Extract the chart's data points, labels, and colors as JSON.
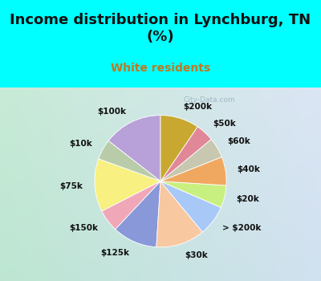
{
  "title": "Income distribution in Lynchburg, TN\n(%)",
  "subtitle": "White residents",
  "title_color": "#111111",
  "subtitle_color": "#c07820",
  "bg_top": "#00ffff",
  "bg_chart_left": "#b8e8d0",
  "bg_chart_right": "#e8f8ff",
  "watermark": "City-Data.com",
  "labels": [
    "$100k",
    "$10k",
    "$75k",
    "$150k",
    "$125k",
    "$30k",
    "> $200k",
    "$20k",
    "$40k",
    "$60k",
    "$50k",
    "$200k"
  ],
  "values": [
    14.5,
    5.0,
    13.0,
    5.5,
    11.0,
    12.0,
    7.5,
    5.5,
    7.0,
    5.0,
    4.5,
    9.5
  ],
  "colors": [
    "#b8a0d8",
    "#b8ccaa",
    "#f8f080",
    "#f0a8b8",
    "#8898d8",
    "#f8c8a0",
    "#a8c8f8",
    "#c8f080",
    "#f0a860",
    "#c8c8b0",
    "#e08898",
    "#c8a830"
  ],
  "startangle": 90,
  "label_fontsize": 7.5,
  "title_fontsize": 13,
  "subtitle_fontsize": 10
}
